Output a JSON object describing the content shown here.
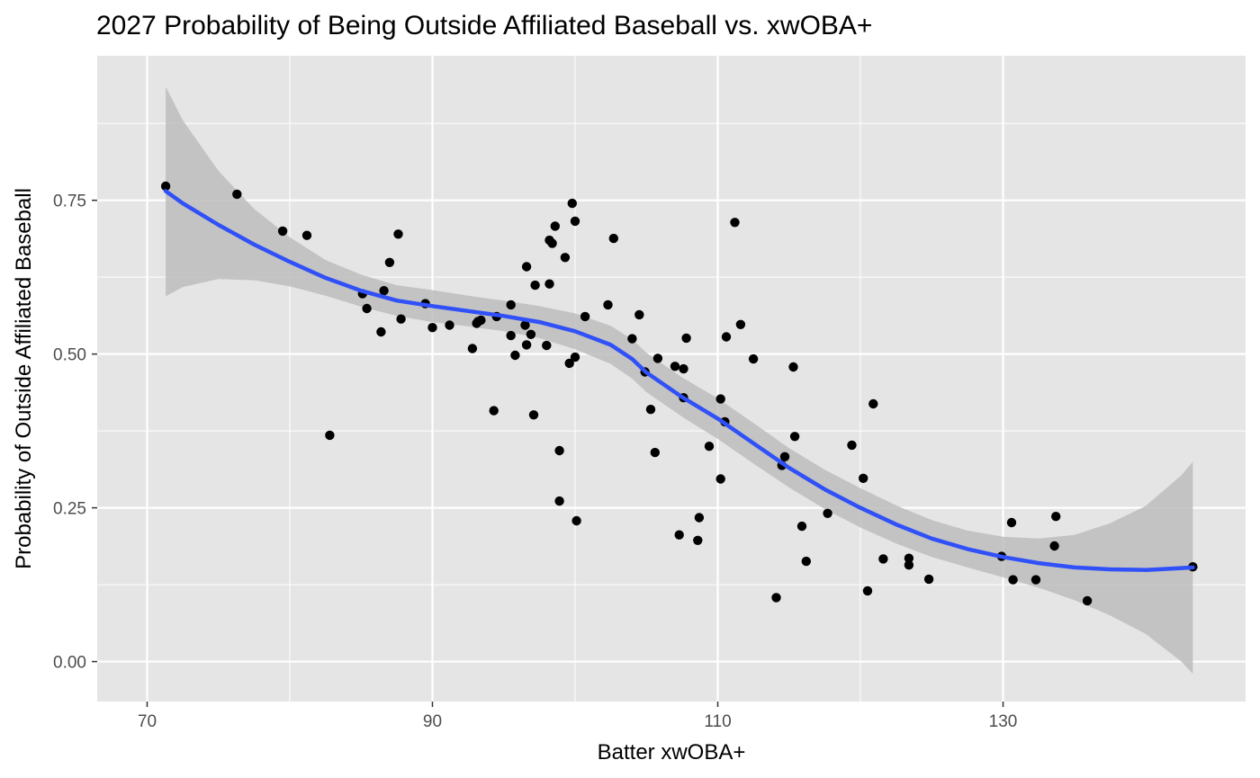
{
  "chart_data": {
    "type": "scatter",
    "title": "2027 Probability of Being Outside Affiliated Baseball vs. xwOBA+",
    "xlabel": "Batter xwOBA+",
    "ylabel": "Probability of Outside Affiliated Baseball",
    "xlim": [
      66.5,
      147.0
    ],
    "ylim": [
      -0.065,
      0.985
    ],
    "x_ticks": [
      70,
      90,
      110,
      130
    ],
    "x_tick_labels": [
      "70",
      "90",
      "110",
      "130"
    ],
    "y_ticks": [
      0.0,
      0.25,
      0.5,
      0.75
    ],
    "y_tick_labels": [
      "0.00",
      "0.25",
      "0.50",
      "0.75"
    ],
    "grid": true,
    "legend": "none",
    "colors": {
      "panel": "#e5e5e5",
      "grid": "#ffffff",
      "points": "#000000",
      "smooth_line": "#3050f8",
      "ribbon": "#bdbdbd"
    },
    "points": [
      {
        "x": 71.3,
        "y": 0.773
      },
      {
        "x": 76.3,
        "y": 0.76
      },
      {
        "x": 79.5,
        "y": 0.7
      },
      {
        "x": 81.2,
        "y": 0.693
      },
      {
        "x": 82.8,
        "y": 0.368
      },
      {
        "x": 85.1,
        "y": 0.598
      },
      {
        "x": 85.4,
        "y": 0.574
      },
      {
        "x": 86.4,
        "y": 0.536
      },
      {
        "x": 86.6,
        "y": 0.603
      },
      {
        "x": 87.0,
        "y": 0.649
      },
      {
        "x": 87.6,
        "y": 0.695
      },
      {
        "x": 87.8,
        "y": 0.557
      },
      {
        "x": 89.5,
        "y": 0.582
      },
      {
        "x": 90.0,
        "y": 0.543
      },
      {
        "x": 91.2,
        "y": 0.547
      },
      {
        "x": 92.8,
        "y": 0.509
      },
      {
        "x": 93.1,
        "y": 0.55
      },
      {
        "x": 93.2,
        "y": 0.553
      },
      {
        "x": 93.4,
        "y": 0.555
      },
      {
        "x": 94.3,
        "y": 0.408
      },
      {
        "x": 94.5,
        "y": 0.561
      },
      {
        "x": 95.5,
        "y": 0.58
      },
      {
        "x": 95.5,
        "y": 0.53
      },
      {
        "x": 95.8,
        "y": 0.498
      },
      {
        "x": 96.5,
        "y": 0.547
      },
      {
        "x": 96.6,
        "y": 0.515
      },
      {
        "x": 96.6,
        "y": 0.642
      },
      {
        "x": 96.9,
        "y": 0.532
      },
      {
        "x": 97.1,
        "y": 0.401
      },
      {
        "x": 97.2,
        "y": 0.612
      },
      {
        "x": 98.0,
        "y": 0.514
      },
      {
        "x": 98.2,
        "y": 0.614
      },
      {
        "x": 98.2,
        "y": 0.685
      },
      {
        "x": 98.4,
        "y": 0.68
      },
      {
        "x": 98.6,
        "y": 0.708
      },
      {
        "x": 98.9,
        "y": 0.343
      },
      {
        "x": 98.9,
        "y": 0.261
      },
      {
        "x": 99.3,
        "y": 0.657
      },
      {
        "x": 99.6,
        "y": 0.485
      },
      {
        "x": 99.8,
        "y": 0.745
      },
      {
        "x": 100.0,
        "y": 0.495
      },
      {
        "x": 100.0,
        "y": 0.716
      },
      {
        "x": 100.1,
        "y": 0.229
      },
      {
        "x": 100.7,
        "y": 0.561
      },
      {
        "x": 102.3,
        "y": 0.58
      },
      {
        "x": 102.7,
        "y": 0.688
      },
      {
        "x": 104.0,
        "y": 0.525
      },
      {
        "x": 104.5,
        "y": 0.564
      },
      {
        "x": 104.9,
        "y": 0.471
      },
      {
        "x": 105.3,
        "y": 0.41
      },
      {
        "x": 105.6,
        "y": 0.34
      },
      {
        "x": 105.8,
        "y": 0.493
      },
      {
        "x": 107.0,
        "y": 0.48
      },
      {
        "x": 107.3,
        "y": 0.206
      },
      {
        "x": 107.6,
        "y": 0.476
      },
      {
        "x": 107.6,
        "y": 0.429
      },
      {
        "x": 107.8,
        "y": 0.526
      },
      {
        "x": 108.6,
        "y": 0.197
      },
      {
        "x": 108.7,
        "y": 0.234
      },
      {
        "x": 109.4,
        "y": 0.35
      },
      {
        "x": 110.2,
        "y": 0.427
      },
      {
        "x": 110.2,
        "y": 0.297
      },
      {
        "x": 110.5,
        "y": 0.39
      },
      {
        "x": 110.6,
        "y": 0.528
      },
      {
        "x": 111.2,
        "y": 0.714
      },
      {
        "x": 111.6,
        "y": 0.548
      },
      {
        "x": 112.5,
        "y": 0.492
      },
      {
        "x": 114.1,
        "y": 0.104
      },
      {
        "x": 114.5,
        "y": 0.319
      },
      {
        "x": 114.7,
        "y": 0.333
      },
      {
        "x": 115.3,
        "y": 0.479
      },
      {
        "x": 115.4,
        "y": 0.366
      },
      {
        "x": 115.9,
        "y": 0.22
      },
      {
        "x": 116.2,
        "y": 0.163
      },
      {
        "x": 117.7,
        "y": 0.241
      },
      {
        "x": 119.4,
        "y": 0.352
      },
      {
        "x": 120.2,
        "y": 0.298
      },
      {
        "x": 120.5,
        "y": 0.115
      },
      {
        "x": 120.9,
        "y": 0.419
      },
      {
        "x": 121.6,
        "y": 0.167
      },
      {
        "x": 123.4,
        "y": 0.168
      },
      {
        "x": 123.4,
        "y": 0.157
      },
      {
        "x": 124.8,
        "y": 0.134
      },
      {
        "x": 129.9,
        "y": 0.171
      },
      {
        "x": 130.6,
        "y": 0.226
      },
      {
        "x": 130.7,
        "y": 0.133
      },
      {
        "x": 132.3,
        "y": 0.133
      },
      {
        "x": 133.6,
        "y": 0.188
      },
      {
        "x": 133.7,
        "y": 0.236
      },
      {
        "x": 135.9,
        "y": 0.099
      },
      {
        "x": 143.3,
        "y": 0.154
      }
    ],
    "smooth": {
      "x": [
        71.3,
        72.5,
        75,
        77.5,
        80,
        82.5,
        85,
        87.5,
        90,
        92.5,
        95,
        97.5,
        100,
        102.5,
        104,
        105,
        107.5,
        110,
        112.5,
        115,
        117.5,
        120,
        122.5,
        125,
        127.5,
        130,
        132.5,
        135,
        137.5,
        140,
        142.5,
        143.3
      ],
      "y": [
        0.765,
        0.745,
        0.71,
        0.678,
        0.65,
        0.624,
        0.603,
        0.587,
        0.578,
        0.57,
        0.562,
        0.552,
        0.537,
        0.515,
        0.492,
        0.47,
        0.43,
        0.395,
        0.355,
        0.315,
        0.28,
        0.25,
        0.223,
        0.2,
        0.183,
        0.17,
        0.16,
        0.153,
        0.15,
        0.149,
        0.152,
        0.153
      ],
      "lower": [
        0.594,
        0.609,
        0.622,
        0.62,
        0.61,
        0.595,
        0.577,
        0.562,
        0.552,
        0.545,
        0.537,
        0.526,
        0.508,
        0.484,
        0.46,
        0.438,
        0.398,
        0.362,
        0.322,
        0.283,
        0.248,
        0.218,
        0.192,
        0.17,
        0.153,
        0.137,
        0.12,
        0.1,
        0.075,
        0.045,
        0.0,
        -0.02
      ],
      "upper": [
        0.935,
        0.88,
        0.798,
        0.736,
        0.69,
        0.653,
        0.629,
        0.612,
        0.604,
        0.595,
        0.587,
        0.578,
        0.566,
        0.546,
        0.524,
        0.502,
        0.462,
        0.428,
        0.388,
        0.347,
        0.312,
        0.282,
        0.254,
        0.23,
        0.213,
        0.203,
        0.2,
        0.206,
        0.225,
        0.253,
        0.303,
        0.325
      ]
    }
  }
}
